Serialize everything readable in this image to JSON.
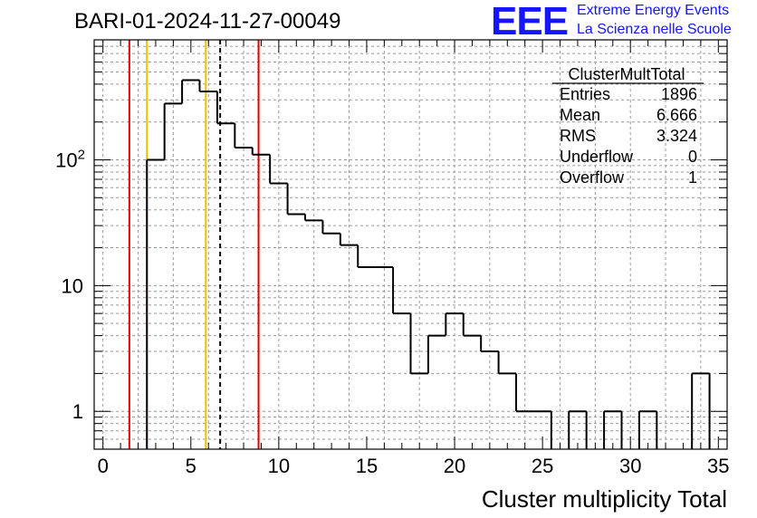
{
  "header": {
    "run_title": "BARI-01-2024-11-27-00049",
    "logo_text": "EEE",
    "logo_line1": "Extreme Energy Events",
    "logo_line2": "La Scienza nelle Scuole",
    "logo_color": "#1515ff"
  },
  "stats_box": {
    "title": "ClusterMultTotal",
    "rows": [
      {
        "label": "Entries",
        "value": "1896"
      },
      {
        "label": "Mean",
        "value": "6.666"
      },
      {
        "label": "RMS",
        "value": "3.324"
      },
      {
        "label": "Underflow",
        "value": "0"
      },
      {
        "label": "Overflow",
        "value": "1"
      }
    ]
  },
  "chart_data": {
    "type": "histogram",
    "xlabel": "Cluster multiplicity Total",
    "ylabel": "",
    "xlim": [
      -0.5,
      35.5
    ],
    "ylim": [
      0.5,
      900
    ],
    "yscale": "log",
    "grid": true,
    "x_ticks": [
      "0",
      "5",
      "10",
      "15",
      "20",
      "25",
      "30",
      "35"
    ],
    "y_ticks": [
      {
        "value": 1,
        "label": "1"
      },
      {
        "value": 10,
        "label": "10"
      },
      {
        "value": 100,
        "base": "10",
        "exp": "2"
      }
    ],
    "bins": [
      {
        "x": 3,
        "count": 100
      },
      {
        "x": 4,
        "count": 280
      },
      {
        "x": 5,
        "count": 430
      },
      {
        "x": 6,
        "count": 350
      },
      {
        "x": 7,
        "count": 195
      },
      {
        "x": 8,
        "count": 125
      },
      {
        "x": 9,
        "count": 110
      },
      {
        "x": 10,
        "count": 65
      },
      {
        "x": 11,
        "count": 37
      },
      {
        "x": 12,
        "count": 33
      },
      {
        "x": 13,
        "count": 26
      },
      {
        "x": 14,
        "count": 21
      },
      {
        "x": 15,
        "count": 14
      },
      {
        "x": 16,
        "count": 14
      },
      {
        "x": 17,
        "count": 6
      },
      {
        "x": 18,
        "count": 2
      },
      {
        "x": 19,
        "count": 4
      },
      {
        "x": 20,
        "count": 6
      },
      {
        "x": 21,
        "count": 4
      },
      {
        "x": 22,
        "count": 3
      },
      {
        "x": 23,
        "count": 2
      },
      {
        "x": 24,
        "count": 1
      },
      {
        "x": 25,
        "count": 1
      },
      {
        "x": 27,
        "count": 1
      },
      {
        "x": 29,
        "count": 1
      },
      {
        "x": 31,
        "count": 1
      },
      {
        "x": 34,
        "count": 2
      }
    ],
    "vertical_lines": [
      {
        "x": 1.5,
        "color": "#e00000",
        "style": "solid"
      },
      {
        "x": 2.5,
        "color": "#f0c000",
        "style": "solid"
      },
      {
        "x": 5.85,
        "color": "#f0c000",
        "style": "solid"
      },
      {
        "x": 6.666,
        "color": "#000000",
        "style": "dashed"
      },
      {
        "x": 8.85,
        "color": "#e00000",
        "style": "solid"
      }
    ]
  }
}
